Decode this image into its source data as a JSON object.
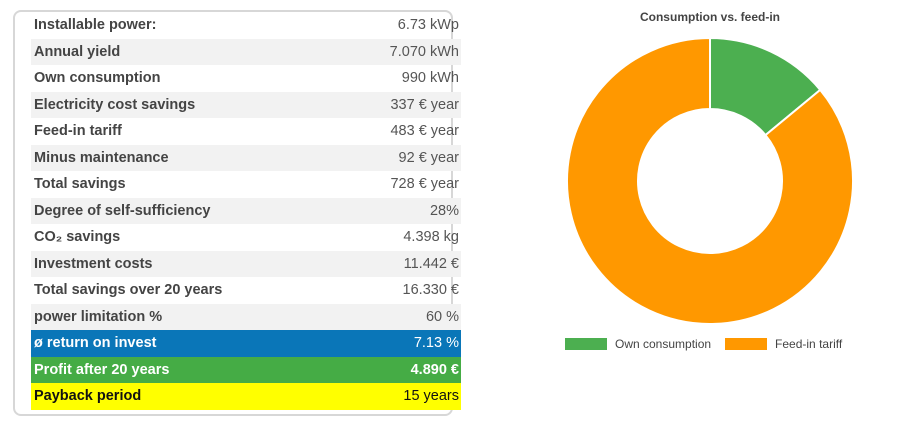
{
  "table": {
    "rows": [
      {
        "label": "Installable power:",
        "value": "6.73 kWp"
      },
      {
        "label": "Annual yield",
        "value": "7.070 kWh"
      },
      {
        "label": "Own consumption",
        "value": "990 kWh"
      },
      {
        "label": "Electricity cost savings",
        "value": "337 € year"
      },
      {
        "label": "Feed-in tariff",
        "value": "483 € year"
      },
      {
        "label": "Minus maintenance",
        "value": "92 € year"
      },
      {
        "label": "Total savings",
        "value": "728 € year"
      },
      {
        "label": "Degree of self-sufficiency",
        "value": "28%"
      },
      {
        "label": "CO₂ savings",
        "value": "4.398 kg"
      },
      {
        "label": "Investment costs",
        "value": "11.442 €"
      },
      {
        "label": "Total savings over 20 years",
        "value": "16.330 €"
      },
      {
        "label": "power limitation %",
        "value": "60 %"
      },
      {
        "label": "ø return on invest",
        "value": "7.13 %"
      },
      {
        "label": "Profit after 20 years",
        "value": "4.890 €"
      },
      {
        "label": "Payback period",
        "value": "15 years"
      }
    ]
  },
  "colors": {
    "own_consumption": "#4caf50",
    "feed_in": "#ff9800",
    "highlight_blue": "#0a76b8",
    "highlight_green": "#45ac45",
    "highlight_yellow": "#ffff00"
  },
  "chart_data": {
    "type": "pie",
    "title": "Consumption vs. feed-in",
    "categories": [
      "Own consumption",
      "Feed-in tariff"
    ],
    "values": [
      14,
      86
    ],
    "legend": "bottom"
  }
}
